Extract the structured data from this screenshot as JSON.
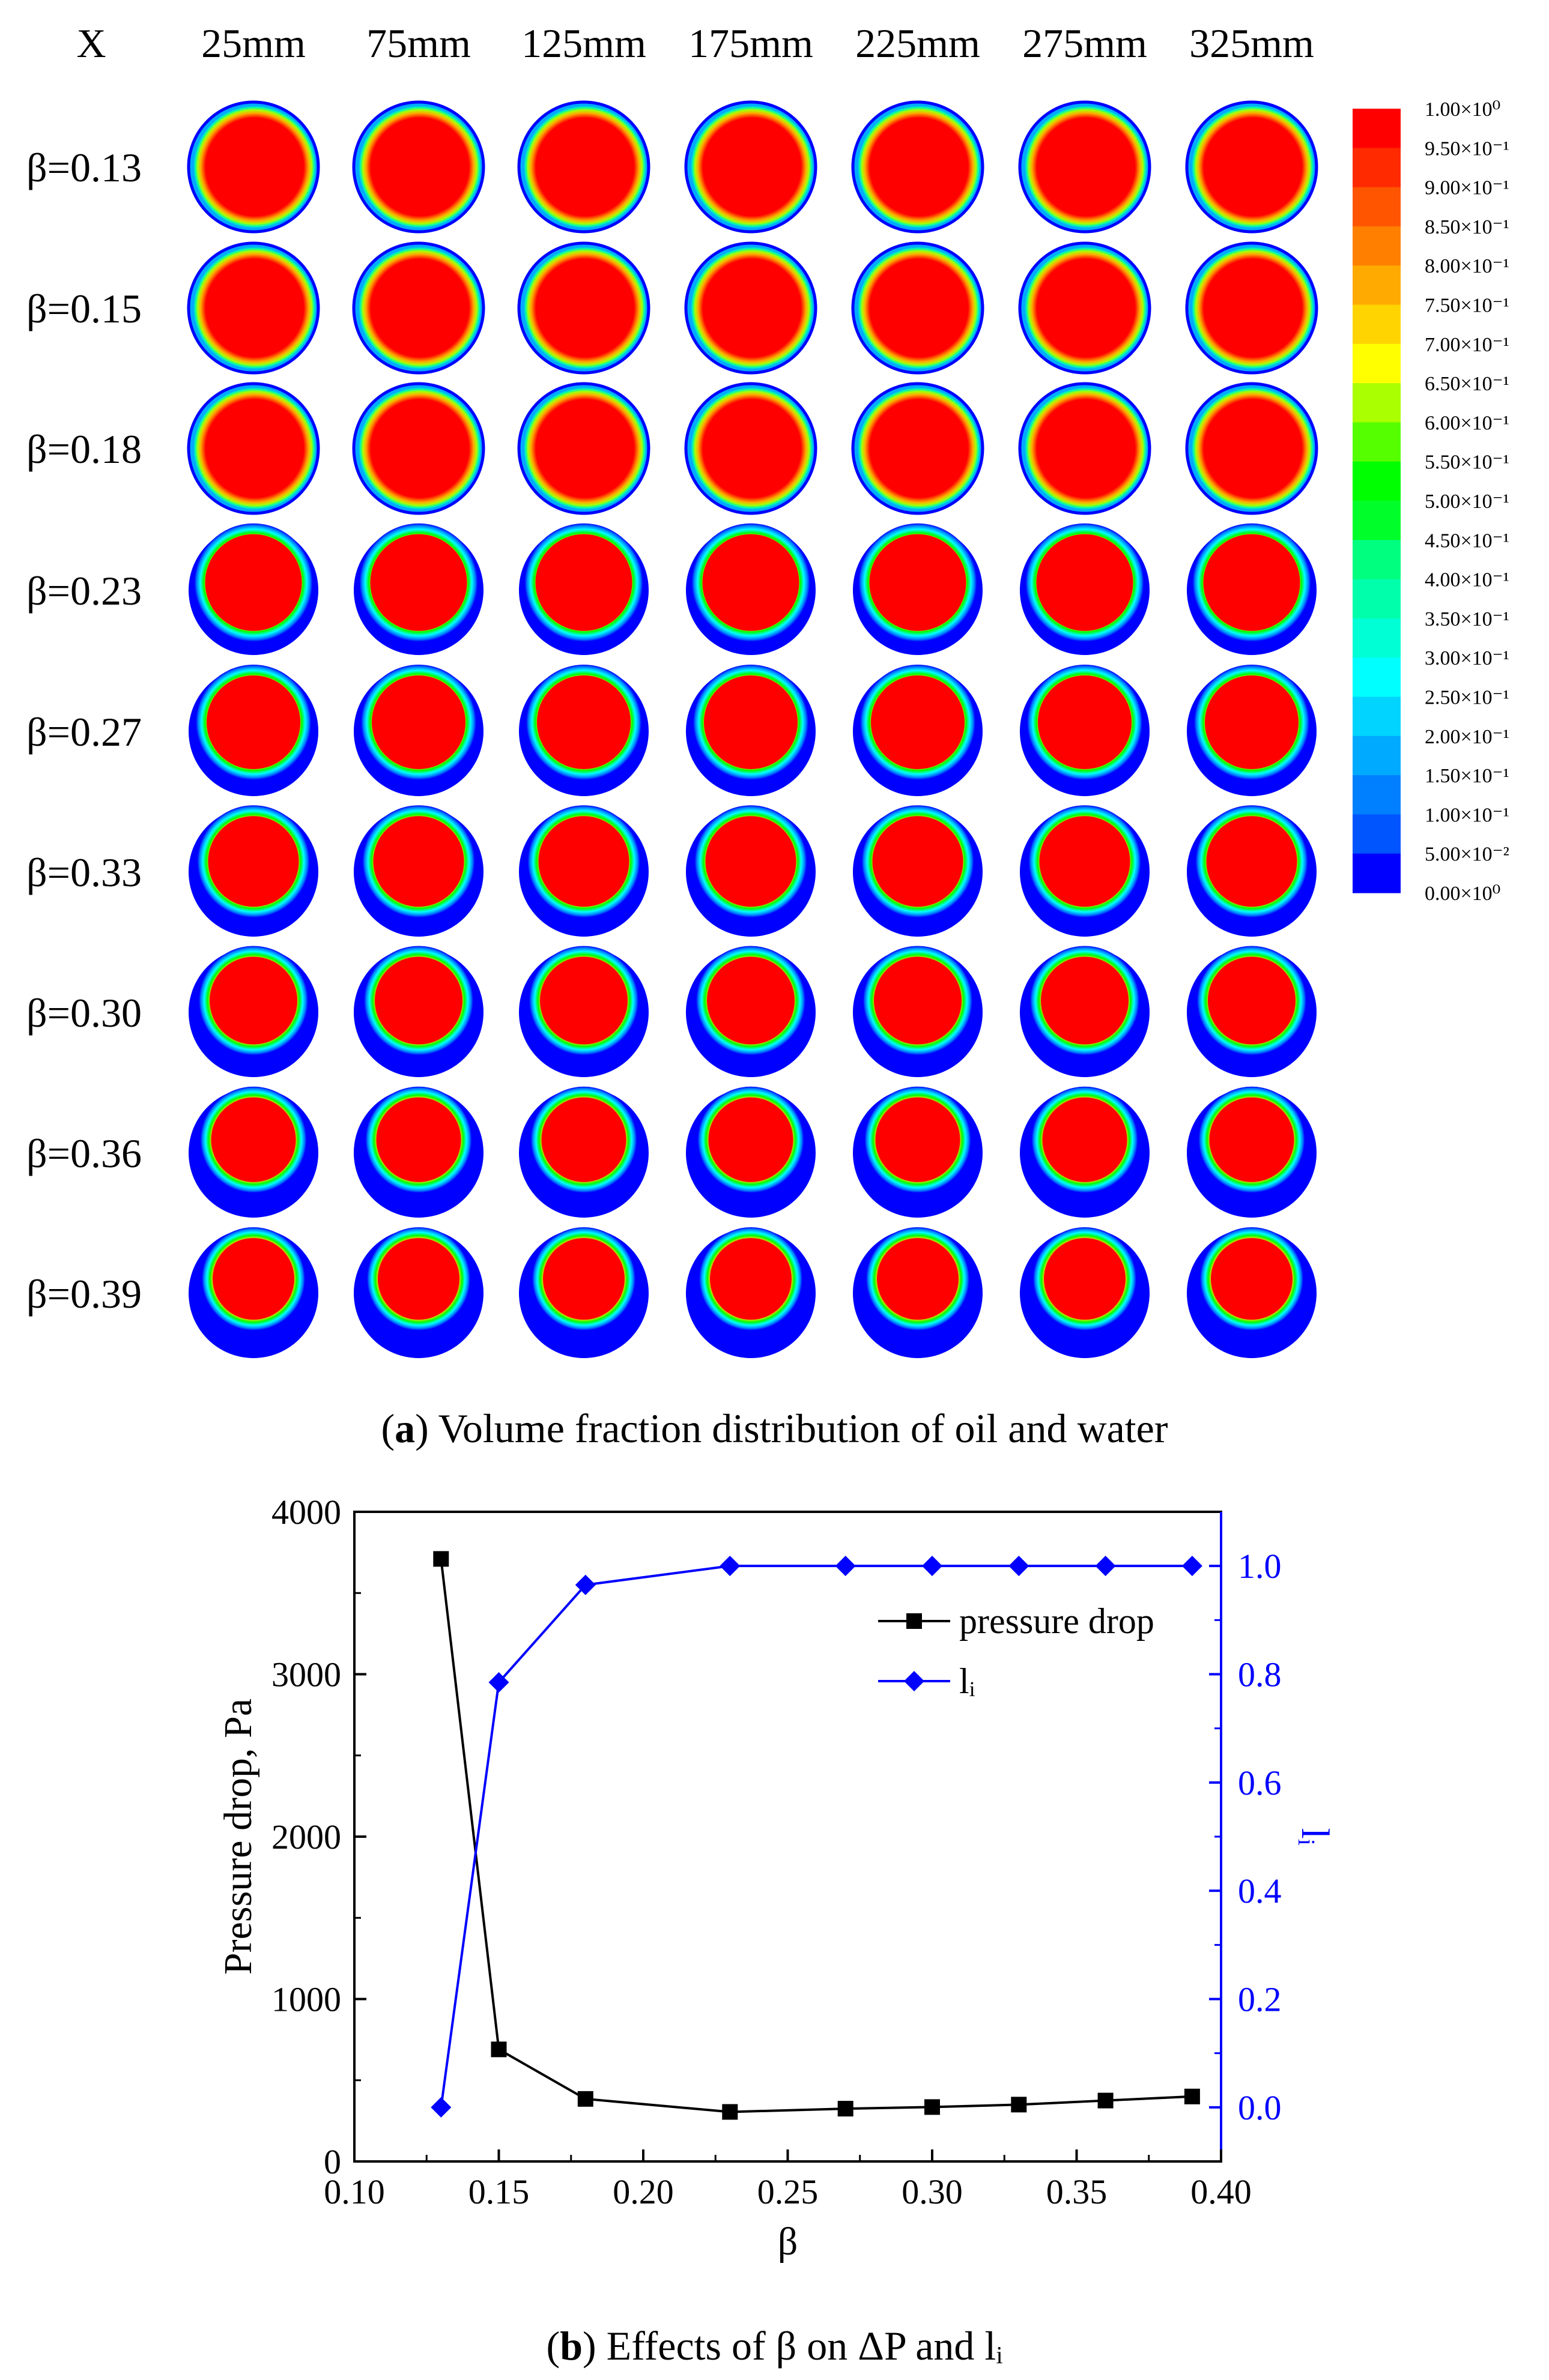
{
  "panel_a": {
    "caption_letter": "a",
    "caption_text": "Volume fraction distribution of oil and water",
    "x_axis_label": "X",
    "columns": [
      "25mm",
      "75mm",
      "125mm",
      "175mm",
      "225mm",
      "275mm",
      "325mm"
    ],
    "rows": [
      "β=0.13",
      "β=0.15",
      "β=0.18",
      "β=0.23",
      "β=0.27",
      "β=0.33",
      "β=0.30",
      "β=0.36",
      "β=0.39"
    ],
    "colorbar": {
      "labels": [
        "1.00×10⁰",
        "9.50×10⁻¹",
        "9.00×10⁻¹",
        "8.50×10⁻¹",
        "8.00×10⁻¹",
        "7.50×10⁻¹",
        "7.00×10⁻¹",
        "6.50×10⁻¹",
        "6.00×10⁻¹",
        "5.50×10⁻¹",
        "5.00×10⁻¹",
        "4.50×10⁻¹",
        "4.00×10⁻¹",
        "3.50×10⁻¹",
        "3.00×10⁻¹",
        "2.50×10⁻¹",
        "2.00×10⁻¹",
        "1.50×10⁻¹",
        "1.00×10⁻¹",
        "5.00×10⁻²",
        "0.00×10⁰"
      ],
      "colors": [
        "#ff0000",
        "#ff2a00",
        "#ff5500",
        "#ff7f00",
        "#ffaa00",
        "#ffd400",
        "#ffff00",
        "#aaff00",
        "#55ff00",
        "#00ff00",
        "#00ff2a",
        "#00ff7f",
        "#00ffaa",
        "#00ffd4",
        "#00ffff",
        "#00d4ff",
        "#00aaff",
        "#007fff",
        "#0055ff",
        "#0000ff"
      ]
    }
  },
  "panel_b": {
    "caption_letter": "b",
    "caption_text": "Effects of β on ΔP and lᵢ",
    "colors": {
      "pressure": "#000000",
      "li": "#0000ff"
    }
  },
  "chart_data": {
    "type": "line",
    "title": "",
    "xlabel": "β",
    "ylabel": "Pressure drop, Pa",
    "y2label": "lᵢ",
    "xlim": [
      0.1,
      0.4
    ],
    "ylim": [
      0,
      4000
    ],
    "y2lim": [
      -0.1,
      1.1
    ],
    "x_ticks": [
      "0.10",
      "0.15",
      "0.20",
      "0.25",
      "0.30",
      "0.35",
      "0.40"
    ],
    "y_ticks": [
      "0",
      "1000",
      "2000",
      "3000",
      "4000"
    ],
    "y2_ticks": [
      "0.0",
      "0.2",
      "0.4",
      "0.6",
      "0.8",
      "1.0"
    ],
    "legend_position": "top-right",
    "series": [
      {
        "name": "pressure drop",
        "axis": "left",
        "marker": "square",
        "x": [
          0.13,
          0.15,
          0.18,
          0.23,
          0.27,
          0.3,
          0.33,
          0.36,
          0.39
        ],
        "values": [
          3710,
          690,
          385,
          305,
          325,
          335,
          350,
          375,
          400
        ]
      },
      {
        "name": "lᵢ",
        "axis": "right",
        "marker": "diamond",
        "x": [
          0.13,
          0.15,
          0.18,
          0.23,
          0.27,
          0.3,
          0.33,
          0.36,
          0.39
        ],
        "values": [
          0.0,
          0.785,
          0.965,
          1.0,
          1.0,
          1.0,
          1.0,
          1.0,
          1.0
        ]
      }
    ]
  }
}
